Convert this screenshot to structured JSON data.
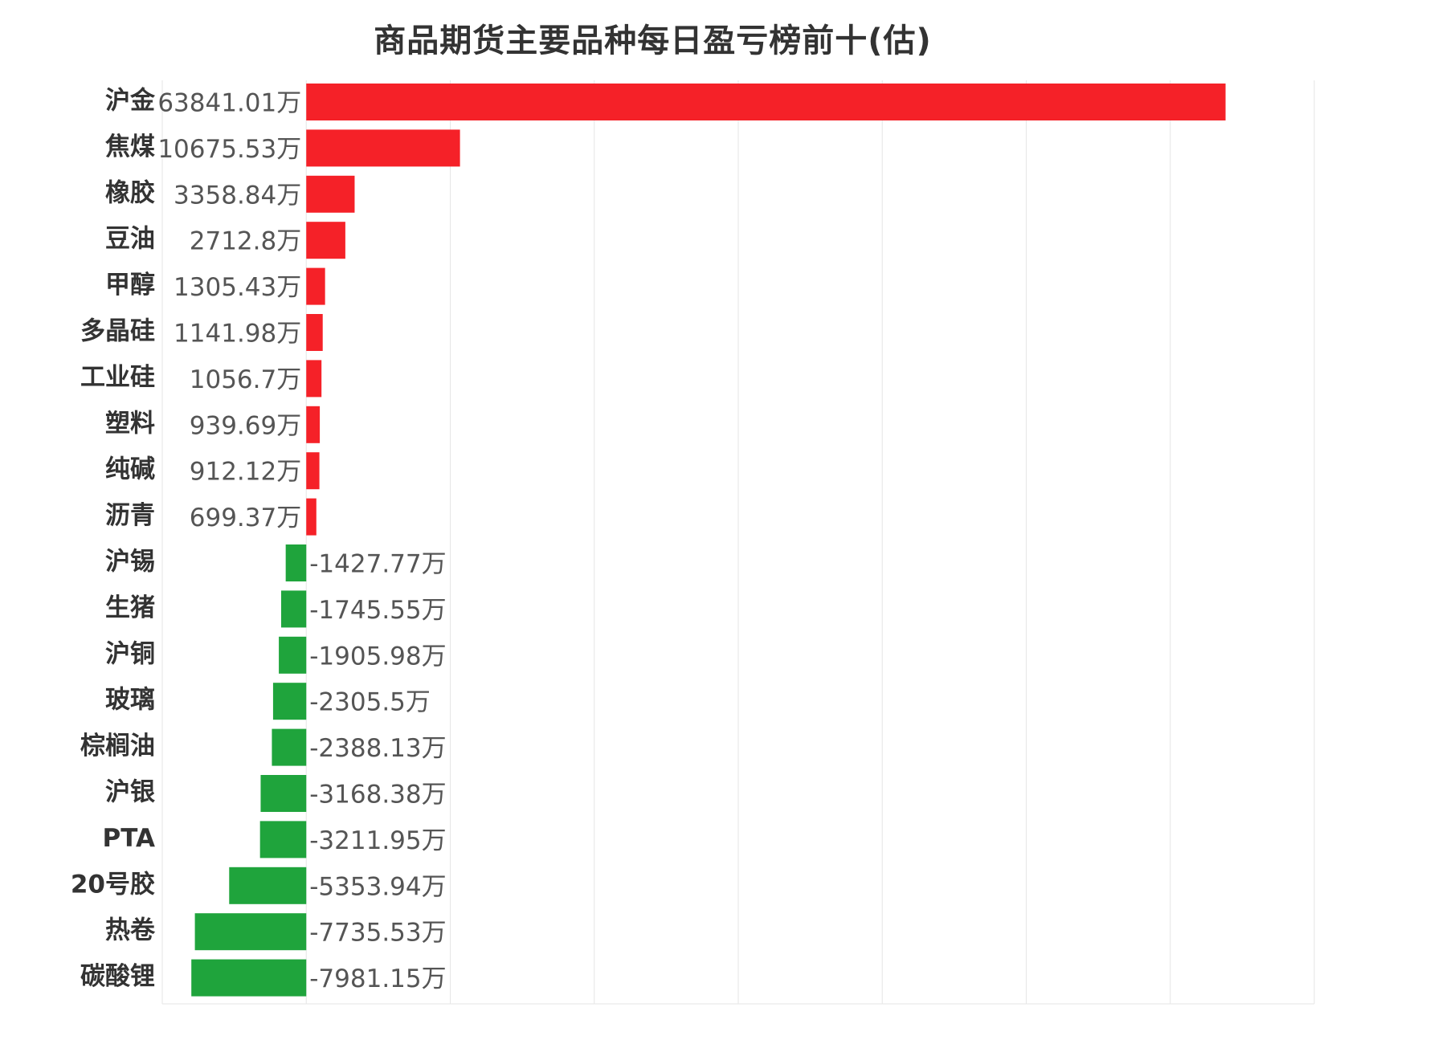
{
  "chart_data": {
    "type": "bar",
    "orientation": "horizontal",
    "title": "商品期货主要品种每日盈亏榜前十(估)",
    "unit": "万",
    "grid": true,
    "colors": {
      "positive": "#f52128",
      "negative": "#1fa43c"
    },
    "categories": [
      "沪金",
      "焦煤",
      "橡胶",
      "豆油",
      "甲醇",
      "多晶硅",
      "工业硅",
      "塑料",
      "纯碱",
      "沥青",
      "沪锡",
      "生猪",
      "沪铜",
      "玻璃",
      "棕榈油",
      "沪银",
      "PTA",
      "20号胶",
      "热卷",
      "碳酸锂"
    ],
    "values": [
      63841.01,
      10675.53,
      3358.84,
      2712.8,
      1305.43,
      1141.98,
      1056.7,
      939.69,
      912.12,
      699.37,
      -1427.77,
      -1745.55,
      -1905.98,
      -2305.5,
      -2388.13,
      -3168.38,
      -3211.95,
      -5353.94,
      -7735.53,
      -7981.15
    ],
    "xlim": [
      -10000,
      70000
    ]
  }
}
